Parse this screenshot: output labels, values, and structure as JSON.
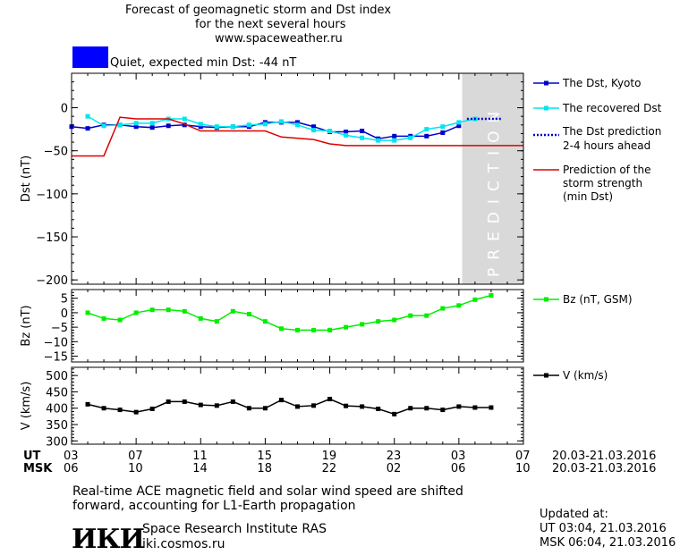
{
  "header": {
    "title_line1": "Forecast of geomagnetic storm and Dst index",
    "title_line2": "for the next several hours",
    "site": "www.spaceweather.ru",
    "status_text": "Quiet, expected min Dst: -44 nT",
    "status_color": "#0000ff"
  },
  "colors": {
    "dst_kyoto": "#0000cc",
    "dst_recovered": "#00e5ee",
    "dst_prediction": "#0000cc",
    "storm_strength": "#dd0000",
    "bz": "#00ee00",
    "v": "#000000",
    "prediction_band": "#d9d9d9"
  },
  "prediction_label": "PREDICTION",
  "legend": {
    "dst_kyoto": "The Dst, Kyoto",
    "dst_recovered": "The recovered Dst",
    "dst_prediction_line1": "The Dst prediction",
    "dst_prediction_line2": "2-4 hours ahead",
    "storm_line1": "Prediction of the",
    "storm_line2": "storm strength",
    "storm_line3": "(min Dst)",
    "bz": "Bz (nT, GSM)",
    "v": "V (km/s)"
  },
  "time_axis": {
    "ut_label": "UT",
    "msk_label": "MSK",
    "ut_ticks": [
      "03",
      "07",
      "11",
      "15",
      "19",
      "23",
      "03",
      "07"
    ],
    "msk_ticks": [
      "06",
      "10",
      "14",
      "18",
      "22",
      "02",
      "06",
      "10"
    ],
    "date_range_ut": "20.03-21.03.2016",
    "date_range_msk": "20.03-21.03.2016",
    "x_range_hours": [
      0,
      28
    ],
    "prediction_start_hour": 24.2
  },
  "footer": {
    "note_line1": "Real-time ACE magnetic field and solar wind speed are shifted",
    "note_line2": "forward, accounting for L1-Earth propagation",
    "logo": "ИКИ",
    "institute": "Space Research Institute RAS",
    "institute_site": "iki.cosmos.ru",
    "updated_label": "Updated at:",
    "updated_ut": "UT   03:04, 21.03.2016",
    "updated_msk": "MSK 06:04, 21.03.2016"
  },
  "chart_data": [
    {
      "type": "line",
      "ylabel": "Dst (nT)",
      "ylim": [
        -205,
        40
      ],
      "yticks": [
        0,
        -50,
        -100,
        -150,
        -200
      ],
      "series": [
        {
          "name": "The Dst, Kyoto",
          "x": [
            0,
            1,
            2,
            3,
            4,
            5,
            6,
            7,
            8,
            9,
            10,
            11,
            12,
            13,
            14,
            15,
            16,
            17,
            18,
            19,
            20,
            21,
            22,
            23,
            24
          ],
          "values": [
            -22,
            -24,
            -20,
            -20,
            -22,
            -23,
            -21,
            -20,
            -22,
            -23,
            -22,
            -22,
            -17,
            -17,
            -17,
            -22,
            -28,
            -28,
            -27,
            -36,
            -33,
            -33,
            -33,
            -29,
            -21
          ]
        },
        {
          "name": "The recovered Dst",
          "x": [
            1,
            2,
            3,
            4,
            5,
            6,
            7,
            8,
            9,
            10,
            11,
            12,
            13,
            14,
            15,
            16,
            17,
            18,
            19,
            20,
            21,
            22,
            23,
            24,
            25
          ],
          "values": [
            -10,
            -21,
            -20,
            -18,
            -18,
            -13,
            -13,
            -19,
            -22,
            -22,
            -20,
            -19,
            -16,
            -20,
            -26,
            -27,
            -32,
            -35,
            -38,
            -38,
            -35,
            -25,
            -22,
            -17,
            -13
          ]
        },
        {
          "name": "The Dst prediction",
          "x": [
            24.5,
            26.6
          ],
          "values": [
            -13,
            -13
          ]
        },
        {
          "name": "Prediction of the storm strength",
          "x": [
            0,
            2,
            3,
            4,
            6,
            7,
            8,
            9,
            12,
            13,
            15,
            16,
            17,
            28
          ],
          "values": [
            -56,
            -56,
            -11,
            -13,
            -13,
            -19,
            -27,
            -27,
            -27,
            -34,
            -37,
            -42,
            -44,
            -44
          ]
        }
      ]
    },
    {
      "type": "line",
      "ylabel": "Bz (nT)",
      "ylim": [
        -17,
        8
      ],
      "yticks": [
        5,
        0,
        -5,
        -10,
        -15
      ],
      "series": [
        {
          "name": "Bz (nT, GSM)",
          "x": [
            1,
            2,
            3,
            4,
            5,
            6,
            7,
            8,
            9,
            10,
            11,
            12,
            13,
            14,
            15,
            16,
            17,
            18,
            19,
            20,
            21,
            22,
            23,
            24,
            25,
            26
          ],
          "values": [
            0,
            -2,
            -2.5,
            0,
            1,
            1,
            0.5,
            -2,
            -3,
            0.5,
            -0.5,
            -3,
            -5.5,
            -6,
            -6,
            -6,
            -5,
            -4,
            -3,
            -2.5,
            -1,
            -1,
            1.5,
            2.5,
            4.5,
            6
          ]
        }
      ]
    },
    {
      "type": "line",
      "ylabel": "V (km/s)",
      "ylim": [
        290,
        525
      ],
      "yticks": [
        500,
        450,
        400,
        350,
        300
      ],
      "series": [
        {
          "name": "V (km/s)",
          "x": [
            1,
            2,
            3,
            4,
            5,
            6,
            7,
            8,
            9,
            10,
            11,
            12,
            13,
            14,
            15,
            16,
            17,
            18,
            19,
            20,
            21,
            22,
            23,
            24,
            25,
            26
          ],
          "values": [
            412,
            400,
            395,
            388,
            398,
            420,
            420,
            410,
            408,
            420,
            400,
            400,
            425,
            405,
            408,
            428,
            407,
            405,
            398,
            382,
            400,
            400,
            395,
            405,
            402,
            402
          ]
        }
      ]
    }
  ]
}
